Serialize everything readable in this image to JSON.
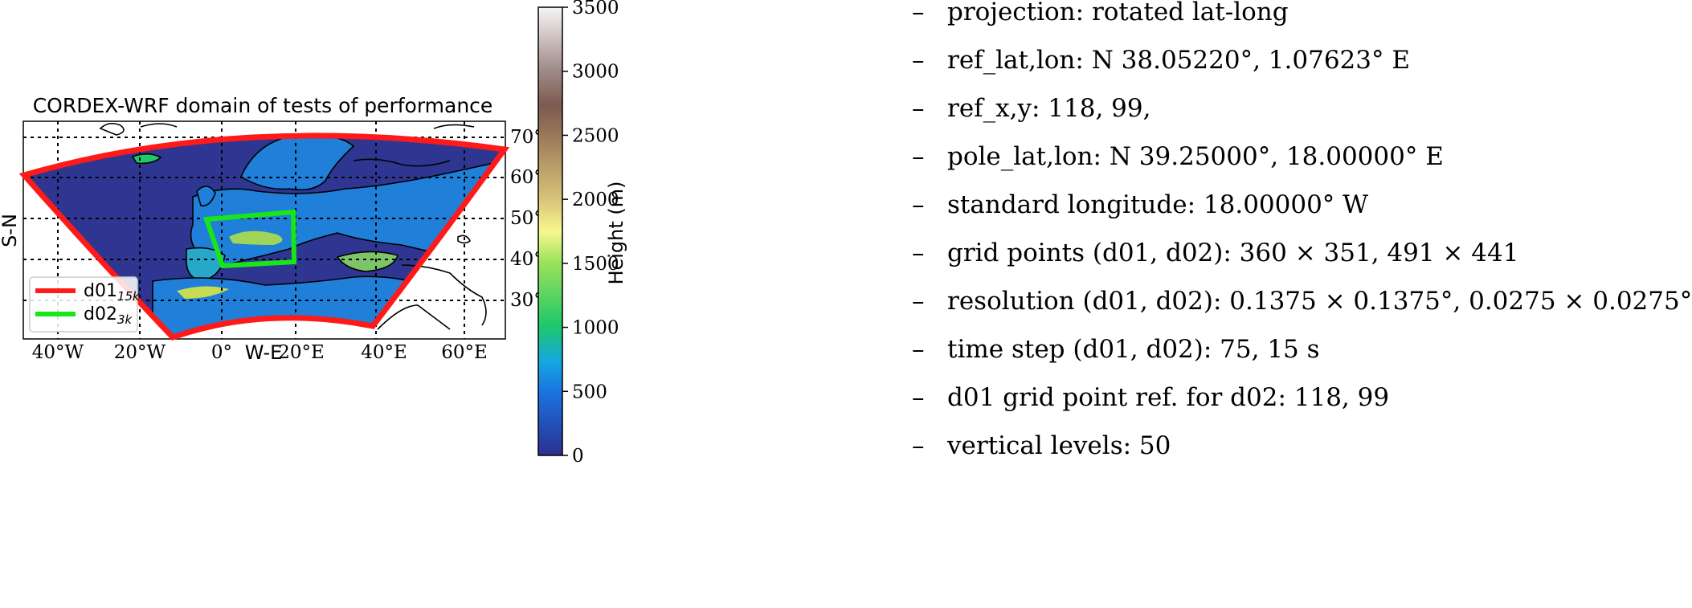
{
  "map": {
    "title": "CORDEX-WRF domain of tests of performance",
    "xlabel": "W-E",
    "ylabel": "S-N",
    "lon_ticks": [
      "40°W",
      "20°W",
      "0°",
      "20°E",
      "40°E",
      "60°E"
    ],
    "lat_ticks": [
      "70°",
      "60°",
      "50°",
      "40°",
      "30°"
    ],
    "legend": [
      {
        "label": "d01",
        "sub": "15k",
        "color": "#ff1a1a"
      },
      {
        "label": "d02",
        "sub": "3k",
        "color": "#19e619"
      }
    ],
    "colors": {
      "sea": "#2f3691",
      "land_low": "#1f7fd9",
      "land_high": "#c7dc55",
      "outline": "#000000"
    }
  },
  "colorbar": {
    "label": "Height (m)",
    "min": 0,
    "max": 3500,
    "ticks": [
      "0",
      "500",
      "1000",
      "1500",
      "2000",
      "2500",
      "3000",
      "3500"
    ]
  },
  "specs": [
    {
      "key": "projection:",
      "value": "rotated lat-long"
    },
    {
      "key": "ref_lat,lon:",
      "value": "N 38.05220°, 1.07623° E"
    },
    {
      "key": "ref_x,y:",
      "value": "118, 99,"
    },
    {
      "key": "pole_lat,lon:",
      "value": "N 39.25000°, 18.00000° E"
    },
    {
      "key": "standard longitude:",
      "value": "18.00000° W"
    },
    {
      "key": "grid points (d01, d02):",
      "value": "360 × 351, 491 × 441"
    },
    {
      "key": "resolution (d01, d02):",
      "value": "0.1375 × 0.1375°, 0.0275 × 0.0275°"
    },
    {
      "key": "time step (d01, d02):",
      "value": "75, 15 s"
    },
    {
      "key": "d01 grid point ref. for d02:",
      "value": "118, 99"
    },
    {
      "key": "vertical levels:",
      "value": "50"
    }
  ]
}
